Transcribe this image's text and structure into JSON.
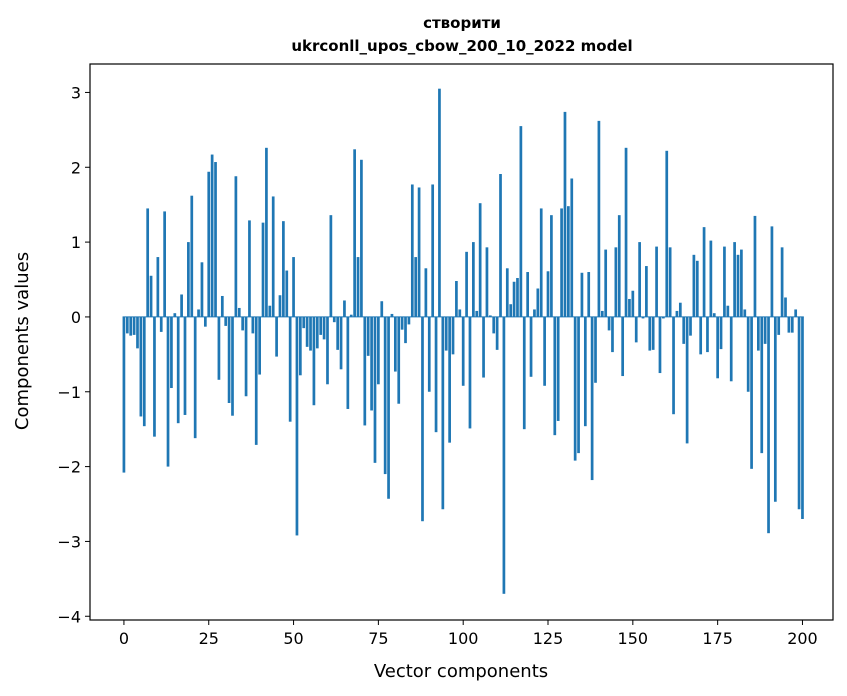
{
  "chart_data": {
    "type": "bar",
    "title_line1": "створити",
    "title_line2": "ukrconll_upos_cbow_200_10_2022 model",
    "xlabel": "Vector components",
    "ylabel": "Components values",
    "xlim": [
      -10,
      209
    ],
    "ylim": [
      -4.05,
      3.38
    ],
    "xticks": [
      0,
      25,
      50,
      75,
      100,
      125,
      150,
      175,
      200
    ],
    "xtick_labels": [
      "0",
      "25",
      "50",
      "75",
      "100",
      "125",
      "150",
      "175",
      "200"
    ],
    "yticks": [
      -4,
      -3,
      -2,
      -1,
      0,
      1,
      2,
      3
    ],
    "ytick_labels": [
      "−4",
      "−3",
      "−2",
      "−1",
      "0",
      "1",
      "2",
      "3"
    ],
    "color": "#1f77b4",
    "values": [
      -2.08,
      -0.22,
      -0.25,
      -0.24,
      -0.42,
      -1.33,
      -1.46,
      1.45,
      0.55,
      -1.6,
      0.8,
      -0.2,
      1.41,
      -2.0,
      -0.95,
      0.05,
      -1.42,
      0.3,
      -1.31,
      1.0,
      1.62,
      -1.62,
      0.1,
      0.73,
      -0.13,
      1.94,
      2.17,
      2.07,
      -0.84,
      0.28,
      -0.12,
      -1.15,
      -1.32,
      1.88,
      0.12,
      -0.18,
      -1.06,
      1.29,
      -0.22,
      -1.71,
      -0.77,
      1.26,
      2.26,
      0.15,
      1.61,
      -0.53,
      0.29,
      1.28,
      0.62,
      -1.4,
      0.8,
      -2.92,
      -0.78,
      -0.15,
      -0.4,
      -0.45,
      -1.18,
      -0.42,
      -0.24,
      -0.3,
      -0.9,
      1.36,
      -0.07,
      -0.44,
      -0.7,
      0.22,
      -1.23,
      0.03,
      2.24,
      0.8,
      2.1,
      -1.45,
      -0.52,
      -1.25,
      -1.95,
      -0.9,
      0.21,
      -2.1,
      -2.43,
      0.04,
      -0.73,
      -1.16,
      -0.17,
      -0.35,
      -0.1,
      1.77,
      0.8,
      1.73,
      -2.73,
      0.65,
      -1.0,
      1.77,
      -1.54,
      3.05,
      -2.57,
      -0.45,
      -1.68,
      -0.5,
      0.48,
      0.1,
      -0.92,
      0.87,
      -1.49,
      1.0,
      0.08,
      1.52,
      -0.81,
      0.93,
      0.02,
      -0.22,
      -0.44,
      1.91,
      -3.7,
      0.65,
      0.17,
      0.47,
      0.52,
      2.55,
      -1.5,
      0.6,
      -0.8,
      0.1,
      0.38,
      1.45,
      -0.92,
      0.61,
      1.36,
      -1.58,
      -1.39,
      1.45,
      2.74,
      1.48,
      1.85,
      -1.92,
      -1.82,
      0.59,
      -1.46,
      0.6,
      -2.18,
      -0.88,
      2.62,
      0.08,
      0.9,
      -0.18,
      -0.47,
      0.93,
      1.36,
      -0.79,
      2.26,
      0.24,
      0.35,
      -0.34,
      1.0,
      -0.02,
      0.68,
      -0.45,
      -0.44,
      0.94,
      -0.75,
      -0.02,
      2.22,
      0.93,
      -1.3,
      0.08,
      0.19,
      -0.36,
      -1.69,
      -0.25,
      0.83,
      0.75,
      -0.5,
      1.2,
      -0.47,
      1.02,
      0.05,
      -0.82,
      -0.43,
      0.94,
      0.15,
      -0.86,
      1.0,
      0.83,
      0.9,
      0.1,
      -1.0,
      -2.03,
      1.35,
      -0.45,
      -1.82,
      -0.36,
      -2.89,
      1.21,
      -2.47,
      -0.24,
      0.93,
      0.26,
      -0.21,
      -0.21,
      0.1,
      -2.57,
      -2.7
    ]
  }
}
